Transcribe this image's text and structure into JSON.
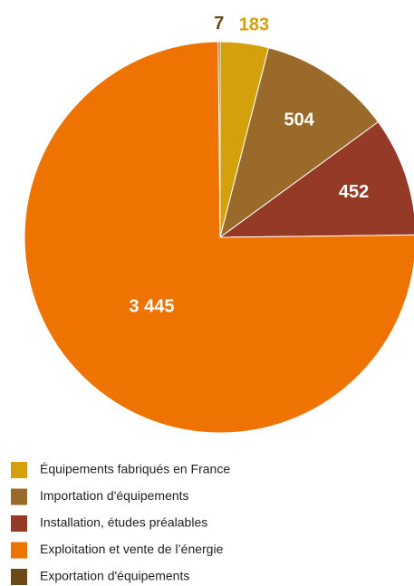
{
  "chart_data": {
    "type": "pie",
    "categories": [
      "Équipements fabriqués en France",
      "Importation d'équipements",
      "Installation, études préalables",
      "Exploitation et vente de l’énergie",
      "Exportation d'équipements"
    ],
    "values": [
      183,
      504,
      452,
      3445,
      7
    ],
    "value_labels": [
      "183",
      "504",
      "452",
      "3 445",
      "7"
    ],
    "colors": [
      "#d4a00c",
      "#9a6a2a",
      "#963a28",
      "#ef7300",
      "#6b4a17"
    ],
    "label_colors": [
      "#d4a00c",
      "#ffffff",
      "#ffffff",
      "#ffffff",
      "#6b4a17"
    ],
    "legend": "bottom-left"
  }
}
